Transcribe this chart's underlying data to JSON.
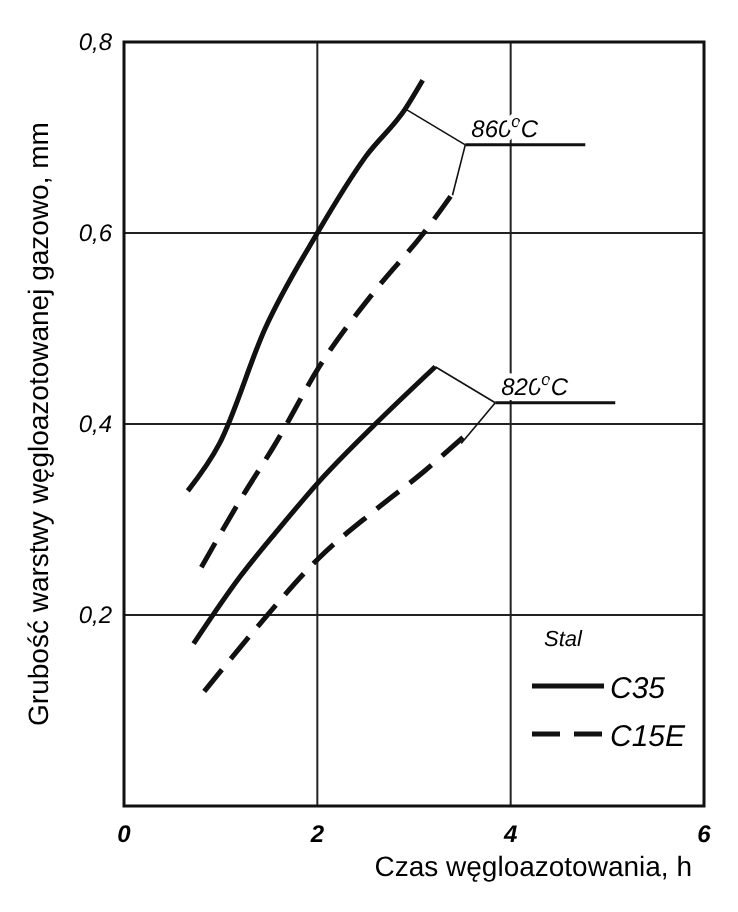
{
  "chart_data": {
    "type": "line",
    "xlabel": "Czas węgloazotowania, h",
    "ylabel": "Grubość warstwy węgloazotowanej gazowo, mm",
    "legend_title": "Stal",
    "legend": "bottom right",
    "grid": true,
    "marker": "none",
    "xlim": [
      0,
      6
    ],
    "xticks": [
      0,
      2,
      4,
      6
    ],
    "ylim": [
      0,
      0.8
    ],
    "yticks": [
      {
        "value": 0.2,
        "label": "0,2"
      },
      {
        "value": 0.4,
        "label": "0,4"
      },
      {
        "value": 0.6,
        "label": "0,6"
      },
      {
        "value": 0.8,
        "label": "0,8"
      }
    ],
    "series": [
      {
        "name": "C35",
        "color": "#111111",
        "line_style": "solid",
        "x": [
          0.66,
          0.99,
          1.46,
          2.0,
          2.5,
          2.91,
          3.09
        ],
        "values": [
          0.33,
          0.38,
          0.5,
          0.6,
          0.68,
          0.73,
          0.76
        ]
      },
      {
        "name": "C15E",
        "color": "#111111",
        "line_style": "dashed",
        "x": [
          0.8,
          1.2,
          1.57,
          2.02,
          2.6,
          3.1,
          3.46
        ],
        "values": [
          0.25,
          0.32,
          0.38,
          0.46,
          0.54,
          0.6,
          0.65
        ]
      },
      {
        "color": "#111111",
        "line_style": "solid",
        "x": [
          0.72,
          1.2,
          1.6,
          2.02,
          2.6,
          3.22
        ],
        "values": [
          0.17,
          0.24,
          0.29,
          0.34,
          0.4,
          0.46
        ]
      },
      {
        "color": "#111111",
        "line_style": "dashed",
        "x": [
          0.83,
          1.4,
          2.02,
          2.6,
          3.1,
          3.55
        ],
        "values": [
          0.12,
          0.19,
          0.26,
          0.31,
          0.35,
          0.39
        ]
      }
    ],
    "annotations": [
      {
        "text": "860$^{o}$C",
        "x": 2.91,
        "y": 0.73
      },
      {
        "text": "820$^{o}$C",
        "x": 3.22,
        "y": 0.46
      }
    ]
  }
}
